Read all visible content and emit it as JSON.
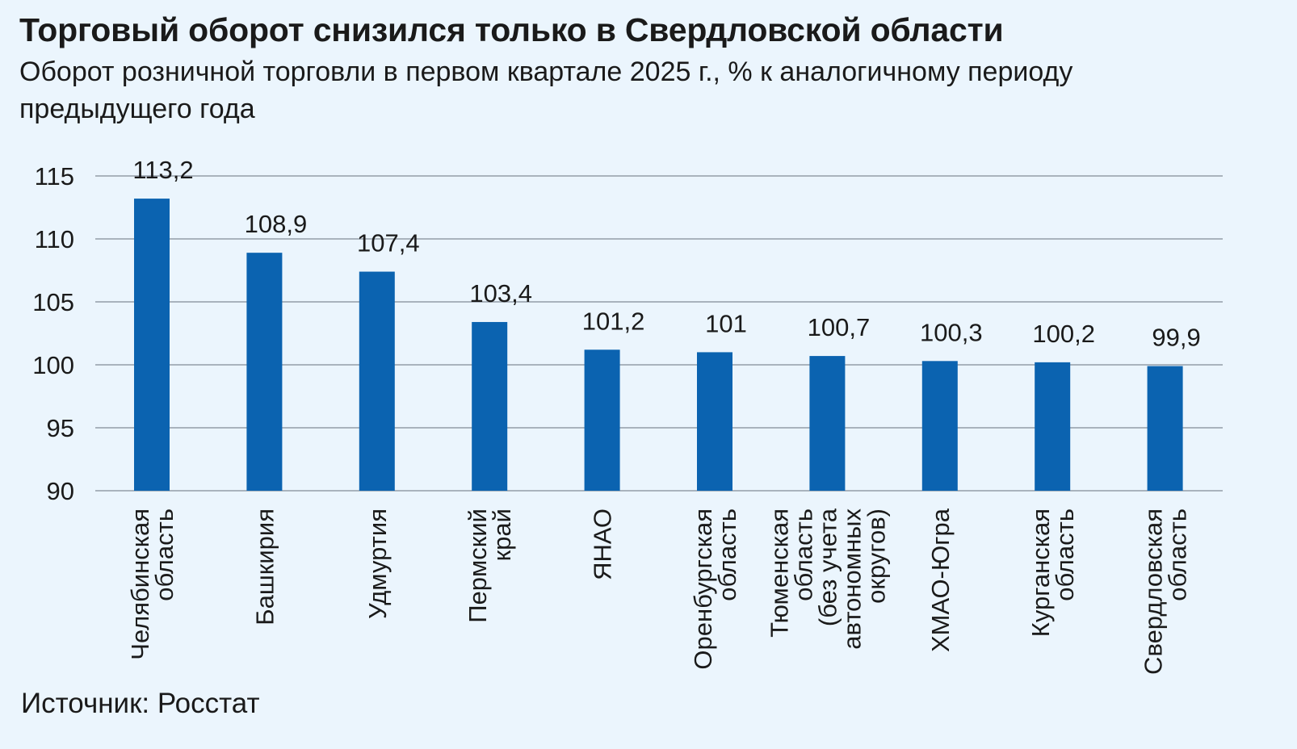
{
  "title": "Торговый оборот снизился только в Свердловской области",
  "subtitle": "Оборот розничной торговли в первом квартале 2025 г., % к аналогичному периоду предыдущего года",
  "source": "Источник: Росстат",
  "colors": {
    "bar": "#0b63b0",
    "grid": "#a9b3bd",
    "background": "#ebf5fd"
  },
  "chart_data": {
    "type": "bar",
    "categories": [
      [
        "Челябинская",
        "область"
      ],
      [
        "Башкирия"
      ],
      [
        "Удмуртия"
      ],
      [
        "Пермский",
        "край"
      ],
      [
        "ЯНАО"
      ],
      [
        "Оренбургская",
        "область"
      ],
      [
        "Тюменская",
        "область",
        "(без учета",
        "автономных",
        "округов)"
      ],
      [
        "ХМАО-Югра"
      ],
      [
        "Курганская",
        "область"
      ],
      [
        "Свердловская",
        "область"
      ]
    ],
    "values": [
      113.2,
      108.9,
      107.4,
      103.4,
      101.2,
      101,
      100.7,
      100.3,
      100.2,
      99.9
    ],
    "value_labels": [
      "113,2",
      "108,9",
      "107,4",
      "103,4",
      "101,2",
      "101",
      "100,7",
      "100,3",
      "100,2",
      "99,9"
    ],
    "yticks": [
      90,
      95,
      100,
      105,
      110,
      115
    ],
    "ylim": [
      90,
      115
    ],
    "grid": true,
    "legend": "none"
  }
}
